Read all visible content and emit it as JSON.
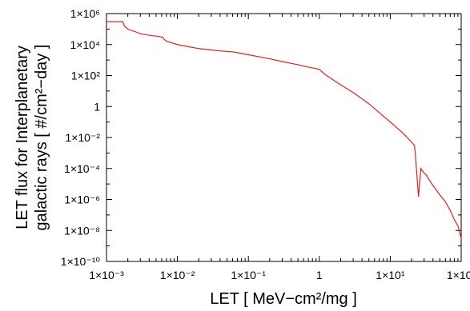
{
  "chart_data": {
    "type": "line",
    "xscale": "log",
    "yscale": "log",
    "xlim": [
      0.001,
      100
    ],
    "ylim": [
      1e-10,
      1000000
    ],
    "xlabel": "LET [ MeV−cm²/mg ]",
    "ylabel_line1": "LET flux for Interplanetary",
    "ylabel_line2": "galactic rays [ #/cm²−day ]",
    "x_ticks": [
      {
        "value": 0.001,
        "label": "1×10⁻³"
      },
      {
        "value": 0.01,
        "label": "1×10⁻²"
      },
      {
        "value": 0.1,
        "label": "1×10⁻¹"
      },
      {
        "value": 1,
        "label": "1"
      },
      {
        "value": 10,
        "label": "1×10¹"
      },
      {
        "value": 100,
        "label": "1×10²"
      }
    ],
    "y_ticks": [
      {
        "value": 1000000,
        "label": "1×10⁶"
      },
      {
        "value": 10000,
        "label": "1×10⁴"
      },
      {
        "value": 100,
        "label": "1×10²"
      },
      {
        "value": 1,
        "label": "1"
      },
      {
        "value": 0.01,
        "label": "1×10⁻²"
      },
      {
        "value": 0.0001,
        "label": "1×10⁻⁴"
      },
      {
        "value": 1e-06,
        "label": "1×10⁻⁶"
      },
      {
        "value": 1e-08,
        "label": "1×10⁻⁸"
      },
      {
        "value": 1e-10,
        "label": "1×10⁻¹⁰"
      }
    ],
    "grid": false,
    "series": [
      {
        "color": "#e8201c",
        "x": [
          0.001,
          0.0017,
          0.0018,
          0.002,
          0.0025,
          0.003,
          0.004,
          0.005,
          0.0062,
          0.0065,
          0.0068,
          0.0072,
          0.01,
          0.015,
          0.02,
          0.03,
          0.04,
          0.05,
          0.06,
          0.07,
          0.1,
          0.2,
          0.3,
          0.5,
          0.7,
          0.9,
          1.0,
          1.2,
          1.5,
          2,
          3,
          5,
          7,
          10,
          15,
          20,
          22,
          23,
          24,
          25,
          27,
          30,
          32,
          35,
          40,
          50,
          60,
          70,
          80,
          90,
          100
        ],
        "y": [
          300000,
          300000,
          150000,
          100000,
          70000,
          50000,
          40000,
          35000,
          30000,
          22000,
          18000,
          16000,
          10000,
          7000,
          5500,
          4500,
          3900,
          3600,
          3400,
          3000,
          2200,
          1200,
          800,
          500,
          350,
          280,
          250,
          120,
          60,
          25,
          8,
          1.5,
          0.4,
          0.1,
          0.02,
          0.005,
          0.003,
          0.0003,
          2e-05,
          1.5e-06,
          0.0001,
          5e-05,
          4e-05,
          2e-05,
          8e-06,
          2e-06,
          7e-07,
          2e-07,
          5e-08,
          2e-08,
          3e-09
        ]
      }
    ]
  }
}
